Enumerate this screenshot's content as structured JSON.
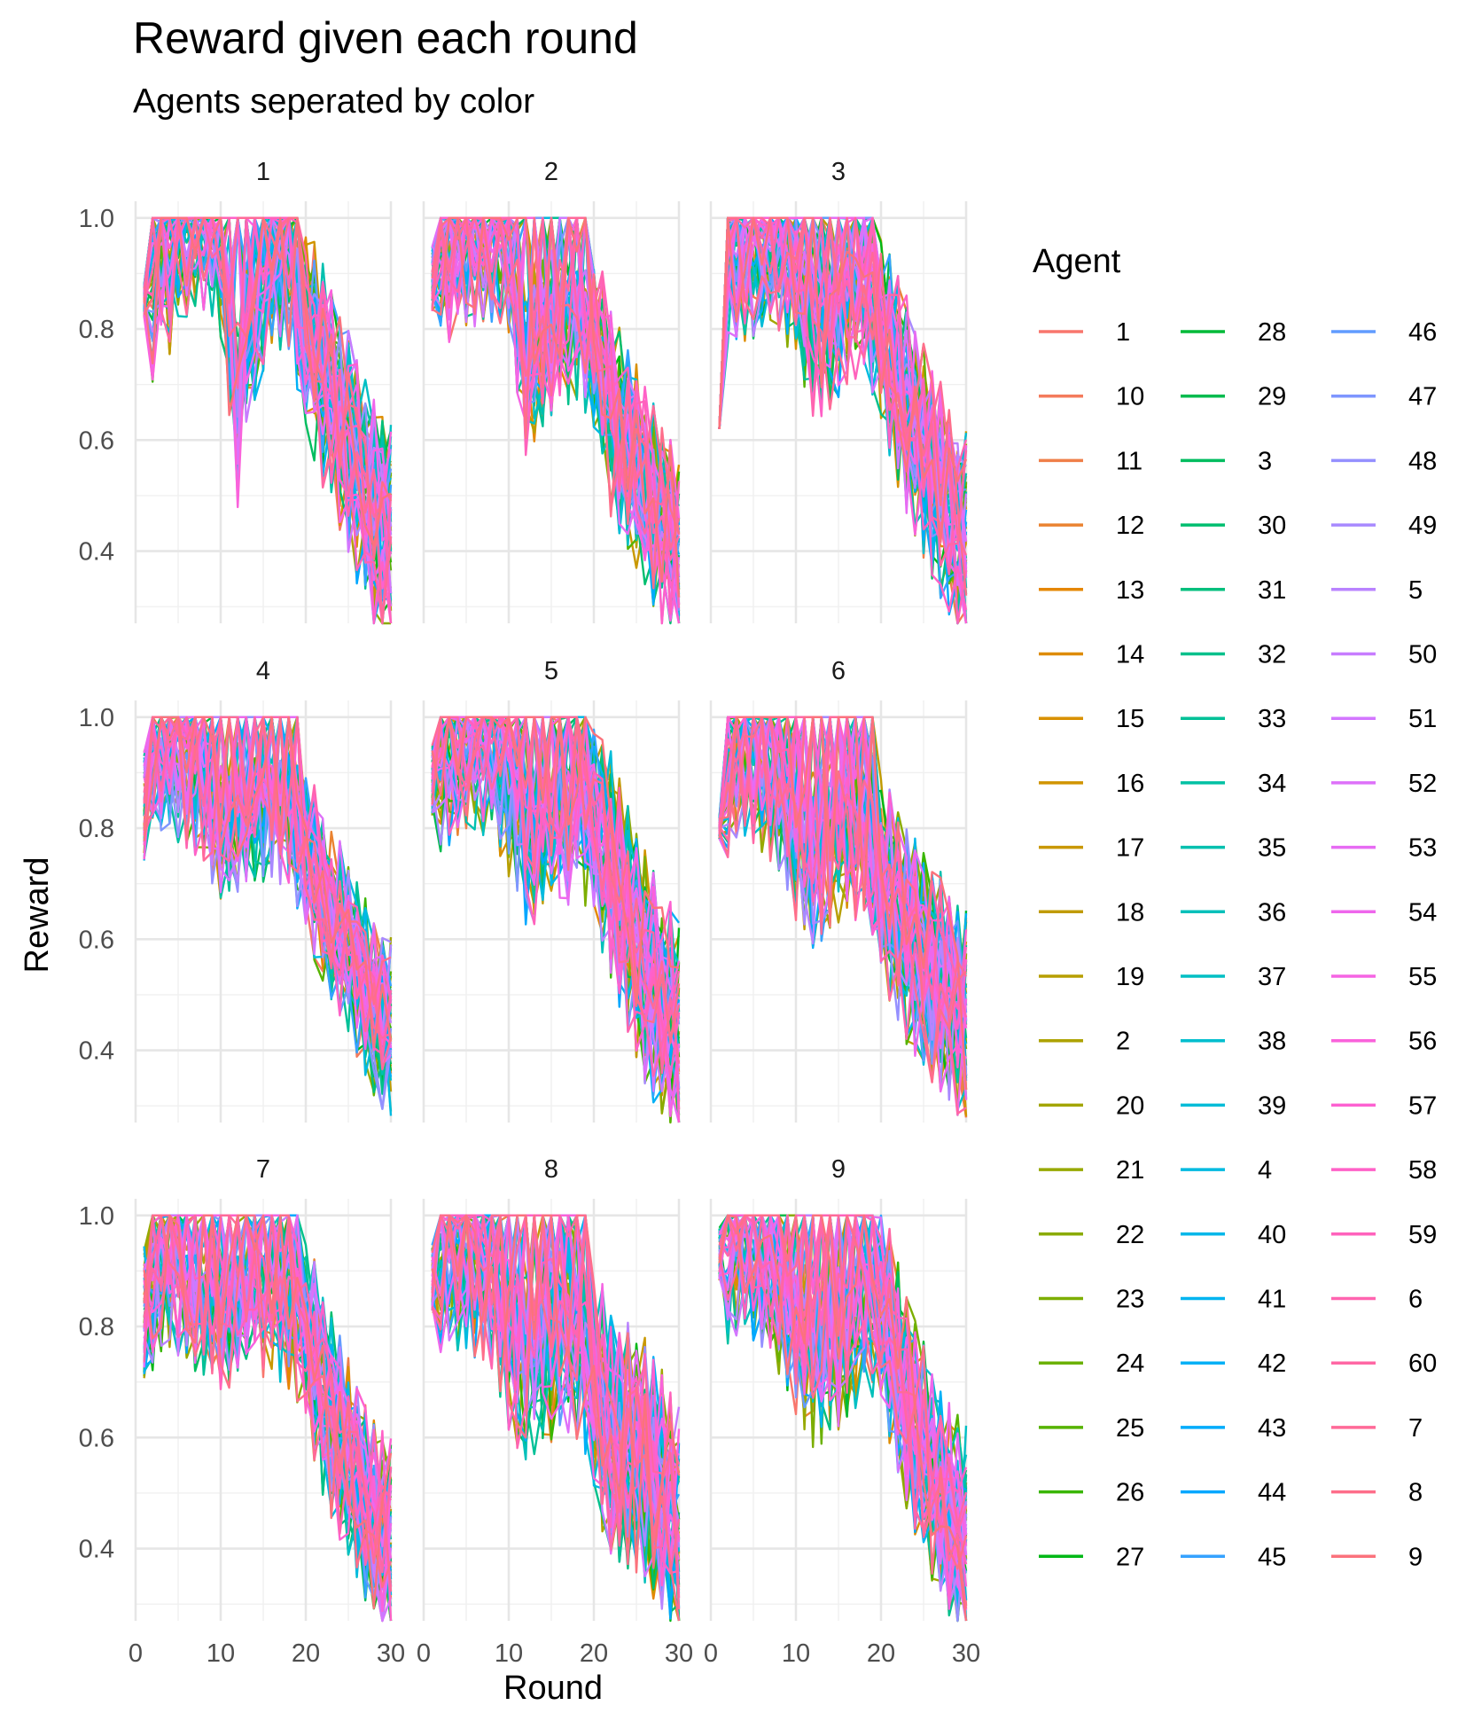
{
  "chart_data": {
    "type": "line",
    "title": "Reward given each round",
    "subtitle": "Agents seperated by color",
    "xlabel": "Round",
    "ylabel": "Reward",
    "xlim": [
      0,
      30
    ],
    "ylim": [
      0.27,
      1.03
    ],
    "x_ticks": [
      "0",
      "10",
      "20",
      "30"
    ],
    "y_ticks": [
      "0.4",
      "0.6",
      "0.8",
      "1.0"
    ],
    "grid": true,
    "legend": {
      "title": "Agent",
      "position": "right",
      "entries": [
        "1",
        "10",
        "11",
        "12",
        "13",
        "14",
        "15",
        "16",
        "17",
        "18",
        "19",
        "2",
        "20",
        "21",
        "22",
        "23",
        "24",
        "25",
        "26",
        "27",
        "28",
        "29",
        "3",
        "30",
        "31",
        "32",
        "33",
        "34",
        "35",
        "36",
        "37",
        "38",
        "39",
        "4",
        "40",
        "41",
        "42",
        "43",
        "44",
        "45",
        "46",
        "47",
        "48",
        "49",
        "5",
        "50",
        "51",
        "52",
        "53",
        "54",
        "55",
        "56",
        "57",
        "58",
        "59",
        "6",
        "60",
        "7",
        "8",
        "9"
      ]
    },
    "facets": [
      {
        "label": "1",
        "anchors": [
          [
            1,
            0.85
          ],
          [
            5,
            0.96
          ],
          [
            8,
            1.0
          ],
          [
            10,
            0.95
          ],
          [
            12,
            0.65
          ],
          [
            14,
            0.85
          ],
          [
            16,
            0.95
          ],
          [
            18,
            0.93
          ],
          [
            20,
            0.8
          ],
          [
            22,
            0.72
          ],
          [
            24,
            0.65
          ],
          [
            26,
            0.55
          ],
          [
            28,
            0.47
          ],
          [
            30,
            0.42
          ]
        ],
        "start": [
          0.82,
          0.88
        ],
        "spread": 0.34
      },
      {
        "label": "2",
        "anchors": [
          [
            1,
            0.9
          ],
          [
            5,
            0.95
          ],
          [
            8,
            0.97
          ],
          [
            10,
            0.95
          ],
          [
            12,
            0.72
          ],
          [
            14,
            0.78
          ],
          [
            16,
            0.8
          ],
          [
            18,
            0.82
          ],
          [
            20,
            0.78
          ],
          [
            22,
            0.65
          ],
          [
            24,
            0.58
          ],
          [
            26,
            0.52
          ],
          [
            28,
            0.45
          ],
          [
            30,
            0.38
          ]
        ],
        "start": [
          0.83,
          0.95
        ],
        "spread": 0.3
      },
      {
        "label": "3",
        "anchors": [
          [
            1,
            0.62
          ],
          [
            2,
            0.93
          ],
          [
            5,
            0.95
          ],
          [
            8,
            0.96
          ],
          [
            10,
            0.9
          ],
          [
            12,
            0.78
          ],
          [
            14,
            0.82
          ],
          [
            16,
            0.86
          ],
          [
            18,
            0.88
          ],
          [
            20,
            0.8
          ],
          [
            22,
            0.7
          ],
          [
            24,
            0.62
          ],
          [
            26,
            0.55
          ],
          [
            28,
            0.47
          ],
          [
            30,
            0.42
          ]
        ],
        "start": [
          0.62,
          0.62
        ],
        "spread": 0.32
      },
      {
        "label": "4",
        "anchors": [
          [
            1,
            0.88
          ],
          [
            4,
            0.92
          ],
          [
            6,
            0.9
          ],
          [
            8,
            0.86
          ],
          [
            10,
            0.8
          ],
          [
            12,
            0.82
          ],
          [
            14,
            0.84
          ],
          [
            16,
            0.84
          ],
          [
            18,
            0.82
          ],
          [
            20,
            0.76
          ],
          [
            22,
            0.68
          ],
          [
            24,
            0.62
          ],
          [
            26,
            0.55
          ],
          [
            28,
            0.47
          ],
          [
            30,
            0.44
          ]
        ],
        "start": [
          0.74,
          0.94
        ],
        "spread": 0.26
      },
      {
        "label": "5",
        "anchors": [
          [
            1,
            0.92
          ],
          [
            4,
            0.96
          ],
          [
            8,
            0.96
          ],
          [
            10,
            0.88
          ],
          [
            12,
            0.8
          ],
          [
            14,
            0.8
          ],
          [
            16,
            0.82
          ],
          [
            18,
            0.84
          ],
          [
            20,
            0.82
          ],
          [
            22,
            0.74
          ],
          [
            24,
            0.64
          ],
          [
            26,
            0.55
          ],
          [
            28,
            0.48
          ],
          [
            30,
            0.44
          ]
        ],
        "start": [
          0.82,
          0.95
        ],
        "spread": 0.34
      },
      {
        "label": "6",
        "anchors": [
          [
            1,
            0.82
          ],
          [
            3,
            0.95
          ],
          [
            6,
            0.92
          ],
          [
            8,
            0.88
          ],
          [
            10,
            0.8
          ],
          [
            12,
            0.75
          ],
          [
            14,
            0.78
          ],
          [
            16,
            0.8
          ],
          [
            18,
            0.8
          ],
          [
            20,
            0.72
          ],
          [
            22,
            0.64
          ],
          [
            24,
            0.58
          ],
          [
            26,
            0.54
          ],
          [
            28,
            0.5
          ],
          [
            30,
            0.46
          ]
        ],
        "start": [
          0.78,
          0.82
        ],
        "spread": 0.32
      },
      {
        "label": "7",
        "anchors": [
          [
            1,
            0.85
          ],
          [
            4,
            0.92
          ],
          [
            6,
            0.88
          ],
          [
            8,
            0.86
          ],
          [
            10,
            0.84
          ],
          [
            12,
            0.84
          ],
          [
            14,
            0.86
          ],
          [
            16,
            0.86
          ],
          [
            18,
            0.84
          ],
          [
            20,
            0.8
          ],
          [
            22,
            0.68
          ],
          [
            24,
            0.6
          ],
          [
            26,
            0.52
          ],
          [
            28,
            0.45
          ],
          [
            30,
            0.42
          ]
        ],
        "start": [
          0.7,
          0.95
        ],
        "spread": 0.3
      },
      {
        "label": "8",
        "anchors": [
          [
            1,
            0.92
          ],
          [
            4,
            0.94
          ],
          [
            6,
            0.92
          ],
          [
            8,
            0.9
          ],
          [
            10,
            0.8
          ],
          [
            12,
            0.74
          ],
          [
            14,
            0.76
          ],
          [
            16,
            0.78
          ],
          [
            18,
            0.78
          ],
          [
            20,
            0.7
          ],
          [
            22,
            0.6
          ],
          [
            24,
            0.58
          ],
          [
            26,
            0.56
          ],
          [
            28,
            0.5
          ],
          [
            30,
            0.44
          ]
        ],
        "start": [
          0.82,
          0.95
        ],
        "spread": 0.36
      },
      {
        "label": "9",
        "anchors": [
          [
            1,
            0.93
          ],
          [
            4,
            0.95
          ],
          [
            6,
            0.92
          ],
          [
            8,
            0.88
          ],
          [
            10,
            0.8
          ],
          [
            12,
            0.74
          ],
          [
            14,
            0.76
          ],
          [
            16,
            0.8
          ],
          [
            18,
            0.84
          ],
          [
            20,
            0.84
          ],
          [
            22,
            0.72
          ],
          [
            24,
            0.62
          ],
          [
            26,
            0.54
          ],
          [
            28,
            0.47
          ],
          [
            30,
            0.42
          ]
        ],
        "start": [
          0.88,
          0.98
        ],
        "spread": 0.32
      }
    ]
  }
}
